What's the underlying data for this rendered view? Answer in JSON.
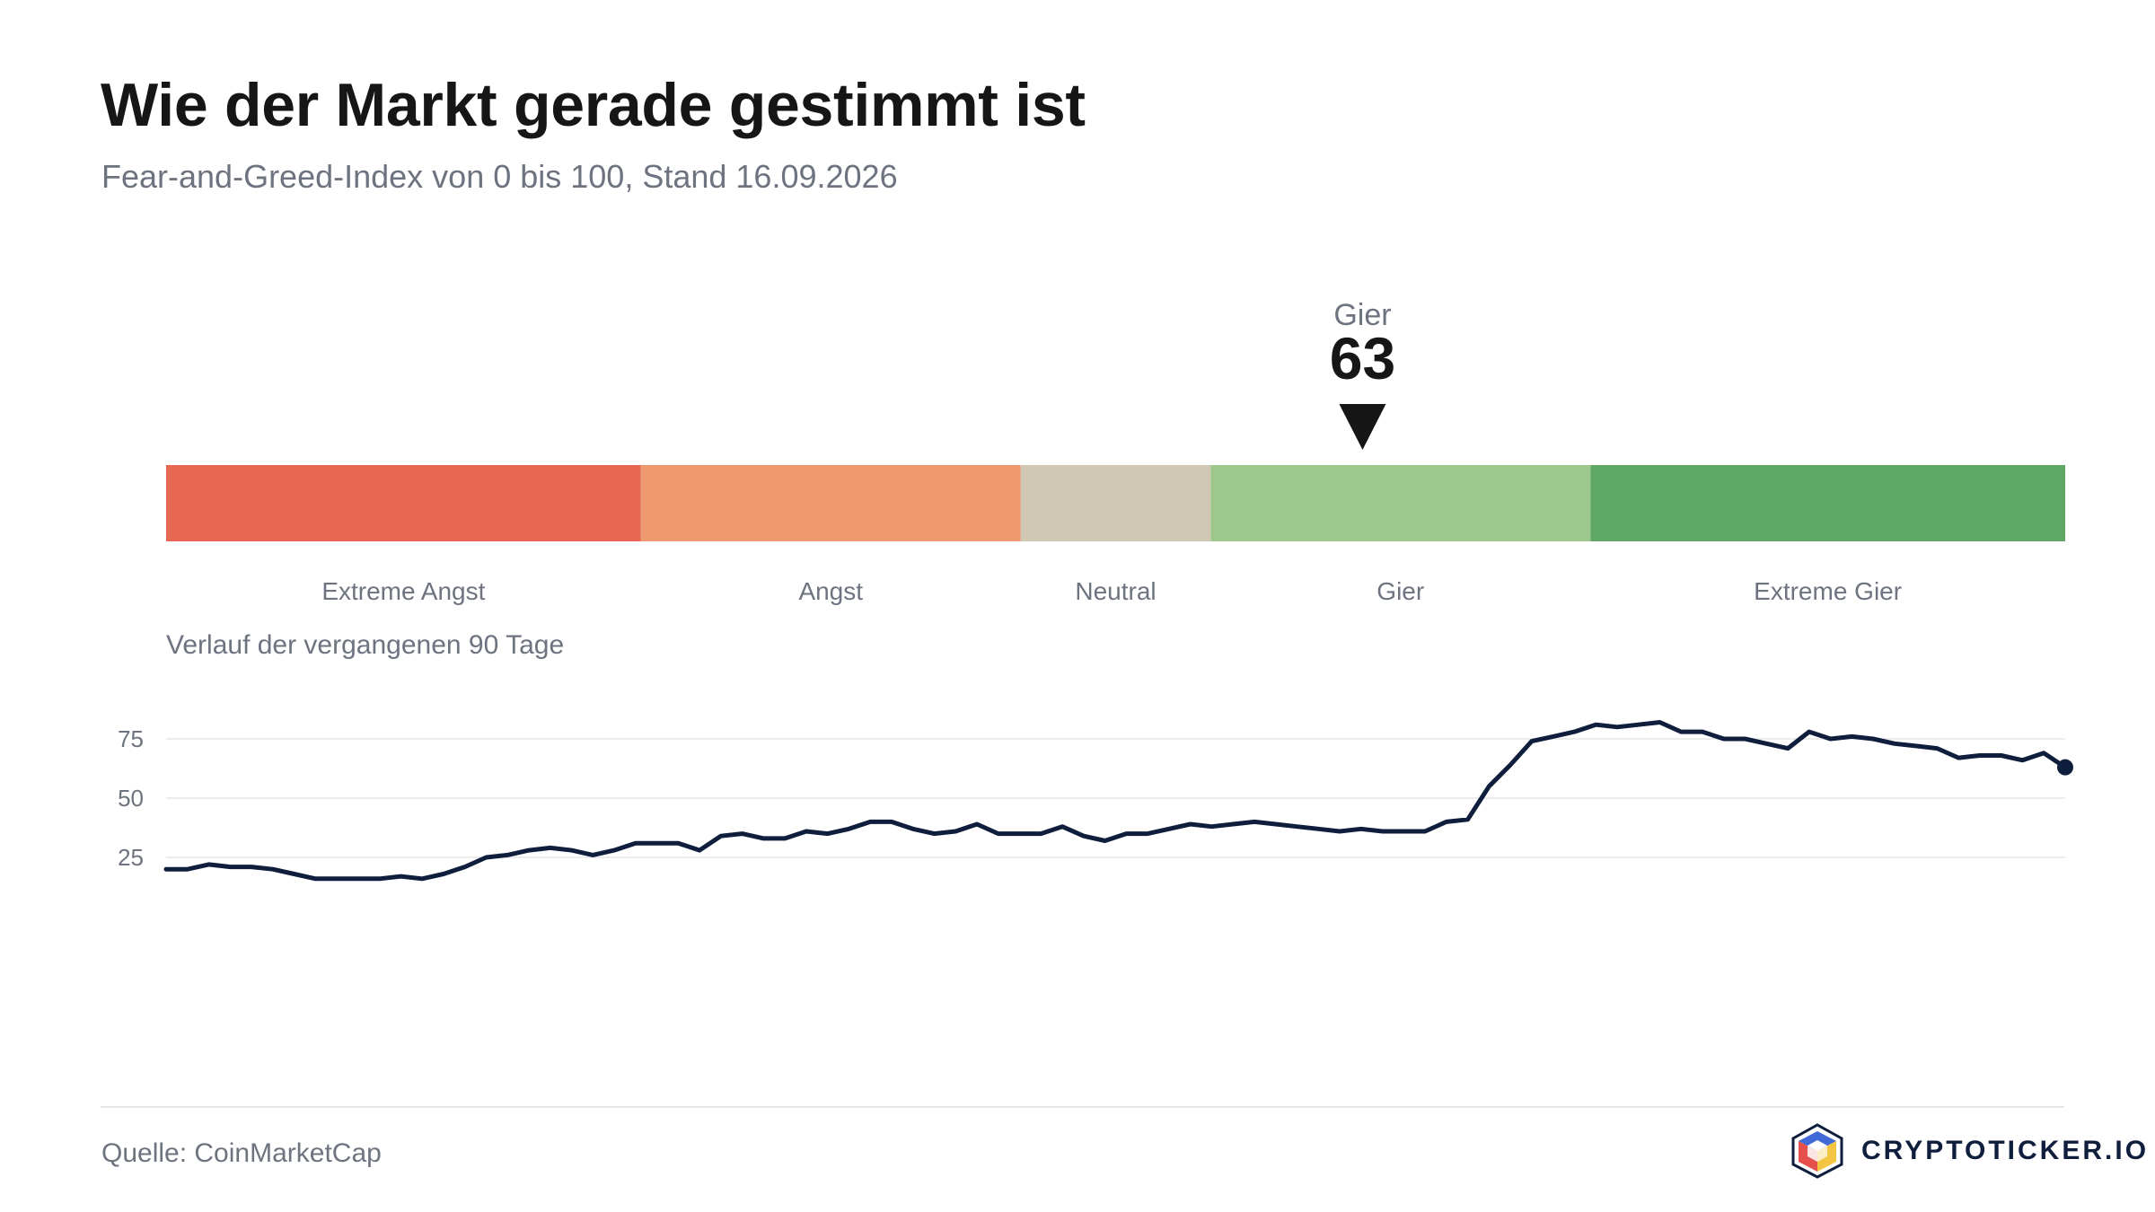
{
  "header": {
    "title": "Wie der Markt gerade gestimmt ist",
    "subtitle": "Fear-and-Greed-Index von 0 bis 100, Stand 16.09.2026"
  },
  "gauge": {
    "current_value": 63,
    "current_label": "Gier",
    "min": 0,
    "max": 100,
    "zones": [
      {
        "label": "Extreme Angst",
        "from": 0,
        "to": 25,
        "color": "#e76852"
      },
      {
        "label": "Angst",
        "from": 25,
        "to": 45,
        "color": "#ed986d"
      },
      {
        "label": "Neutral",
        "from": 45,
        "to": 55,
        "color": "#d0c8b3"
      },
      {
        "label": "Gier",
        "from": 55,
        "to": 75,
        "color": "#9dc78b"
      },
      {
        "label": "Extreme Gier",
        "from": 75,
        "to": 100,
        "color": "#60a866"
      }
    ]
  },
  "chart_data": {
    "type": "line",
    "title": "Verlauf der vergangenen 90 Tage",
    "xlabel": "",
    "ylabel": "",
    "ylim": [
      0,
      100
    ],
    "yticks": [
      25,
      50,
      75
    ],
    "grid": true,
    "line_color": "#0f1e3d",
    "series": [
      {
        "values": [
          20,
          20,
          22,
          21,
          21,
          20,
          18,
          16,
          16,
          16,
          16,
          17,
          16,
          18,
          21,
          25,
          26,
          28,
          29,
          28,
          26,
          28,
          31,
          31,
          31,
          28,
          34,
          35,
          33,
          33,
          36,
          35,
          37,
          40,
          40,
          37,
          35,
          36,
          39,
          35,
          35,
          35,
          38,
          34,
          32,
          35,
          35,
          37,
          39,
          38,
          39,
          40,
          39,
          38,
          37,
          36,
          37,
          36,
          36,
          36,
          40,
          41,
          55,
          64,
          74,
          76,
          78,
          81,
          80,
          81,
          82,
          78,
          78,
          75,
          75,
          73,
          71,
          78,
          75,
          76,
          75,
          73,
          72,
          71,
          67,
          68,
          68,
          66,
          69,
          63
        ]
      }
    ]
  },
  "footer": {
    "source": "Quelle: CoinMarketCap",
    "brand": "CRYPTOTICKER.IO"
  }
}
